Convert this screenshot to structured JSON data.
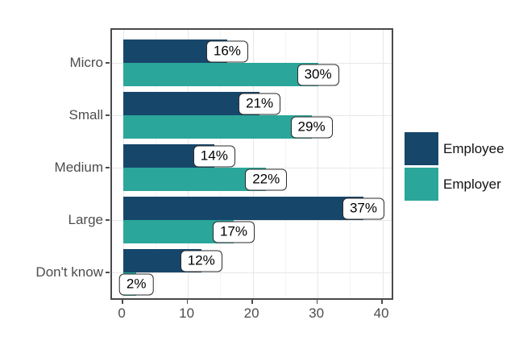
{
  "chart_data": {
    "type": "bar",
    "orientation": "horizontal",
    "title": "",
    "xlabel": "",
    "ylabel": "",
    "categories": [
      "Micro",
      "Small",
      "Medium",
      "Large",
      "Don't know"
    ],
    "series": [
      {
        "name": "Employee",
        "color": "#17466b",
        "values": [
          16,
          21,
          14,
          37,
          12
        ],
        "labels": [
          "16%",
          "21%",
          "14%",
          "37%",
          "12%"
        ]
      },
      {
        "name": "Employer",
        "color": "#2ba69a",
        "values": [
          30,
          29,
          22,
          17,
          2
        ],
        "labels": [
          "30%",
          "29%",
          "22%",
          "17%",
          "2%"
        ]
      }
    ],
    "x_ticks": [
      0,
      10,
      20,
      30,
      40
    ],
    "x_tick_labels": [
      "0",
      "10",
      "20",
      "30",
      "40"
    ],
    "x_minor_ticks": [
      5,
      15,
      25,
      35
    ],
    "xlim": [
      -2,
      41.6
    ],
    "grid": true,
    "legend_position": "right",
    "bar_label_style": "white rounded box at bar end"
  },
  "colors": {
    "employee": "#17466b",
    "employer": "#2ba69a",
    "axis_text": "#4d4d4d",
    "panel_border": "#4a4a4a",
    "grid_major": "#e7e7e7",
    "grid_minor": "#f4f4f4",
    "label_box_bg": "#ffffff",
    "label_box_border": "#2b2b2b"
  }
}
